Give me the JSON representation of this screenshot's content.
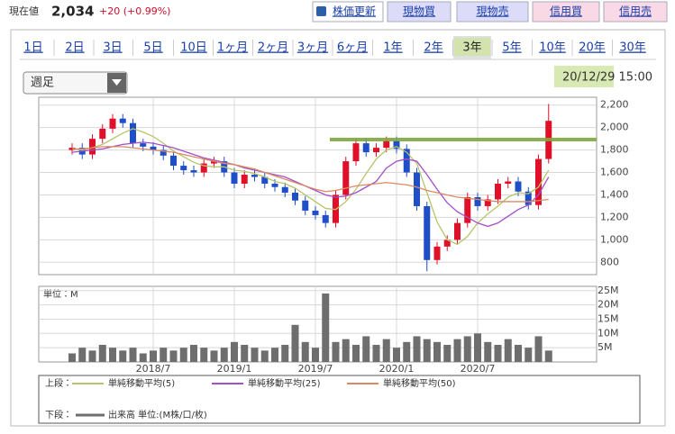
{
  "header": {
    "label": "現在値",
    "price": "2,034",
    "change": "+20 (+0.99%)"
  },
  "buttons": [
    "株価更新",
    "現物買",
    "現物売",
    "信用買",
    "信用売"
  ],
  "tabs": [
    "1日",
    "2日",
    "3日",
    "5日",
    "10日",
    "1ヶ月",
    "2ヶ月",
    "3ヶ月",
    "6ヶ月",
    "1年",
    "2年",
    "3年",
    "5年",
    "10年",
    "20年",
    "30年"
  ],
  "selected_tab": 11,
  "period_select": "週足",
  "timestamp": "20/12/29 15:00",
  "chart_data": {
    "type": "candlestick",
    "categories": [
      null,
      null,
      null,
      null,
      null,
      null,
      null,
      null,
      "2018/7",
      null,
      null,
      null,
      null,
      null,
      null,
      null,
      "2019/1",
      null,
      null,
      null,
      null,
      null,
      null,
      null,
      "2019/7",
      null,
      null,
      null,
      null,
      null,
      null,
      null,
      "2020/1",
      null,
      null,
      null,
      null,
      null,
      null,
      null,
      "2020/7",
      null,
      null,
      null,
      null,
      null,
      null,
      null
    ],
    "open": [
      1800,
      1820,
      1760,
      1900,
      1990,
      2080,
      2040,
      1860,
      1830,
      1800,
      1750,
      1660,
      1620,
      1600,
      1680,
      1700,
      1600,
      1500,
      1580,
      1560,
      1500,
      1470,
      1420,
      1350,
      1260,
      1220,
      1150,
      1400,
      1700,
      1860,
      1780,
      1820,
      1880,
      1810,
      1600,
      1300,
      820,
      940,
      1000,
      1150,
      1380,
      1300,
      1360,
      1500,
      1520,
      1430,
      1310,
      1720
    ],
    "high": [
      1860,
      1860,
      1940,
      2030,
      2120,
      2120,
      2080,
      1900,
      1870,
      1840,
      1790,
      1700,
      1660,
      1720,
      1740,
      1740,
      1640,
      1620,
      1620,
      1600,
      1540,
      1510,
      1460,
      1390,
      1300,
      1260,
      1440,
      1740,
      1900,
      1900,
      1860,
      1920,
      1920,
      1850,
      1640,
      1340,
      980,
      1040,
      1190,
      1420,
      1420,
      1400,
      1540,
      1560,
      1560,
      1470,
      1760,
      2210
    ],
    "low": [
      1760,
      1720,
      1720,
      1860,
      1950,
      2000,
      1820,
      1790,
      1760,
      1710,
      1620,
      1580,
      1560,
      1560,
      1640,
      1560,
      1460,
      1460,
      1520,
      1460,
      1430,
      1380,
      1310,
      1220,
      1180,
      1110,
      1110,
      1360,
      1660,
      1740,
      1740,
      1780,
      1770,
      1560,
      1260,
      720,
      780,
      900,
      960,
      1110,
      1260,
      1260,
      1320,
      1460,
      1390,
      1270,
      1270,
      1680
    ],
    "close": [
      1820,
      1760,
      1900,
      1990,
      2080,
      2040,
      1860,
      1830,
      1800,
      1750,
      1660,
      1620,
      1600,
      1680,
      1700,
      1600,
      1500,
      1580,
      1560,
      1500,
      1470,
      1420,
      1350,
      1260,
      1220,
      1150,
      1400,
      1700,
      1860,
      1780,
      1820,
      1880,
      1810,
      1600,
      1300,
      820,
      940,
      1000,
      1150,
      1380,
      1300,
      1360,
      1500,
      1520,
      1430,
      1310,
      1720,
      2060
    ],
    "up_color": "#e0102a",
    "down_color": "#1f4fc8",
    "upper_label": "上段：",
    "series": [
      {
        "name": "単純移動平均(5)",
        "color": "#b8c46a",
        "values": [
          1810,
          1800,
          1820,
          1850,
          1900,
          1950,
          1990,
          1960,
          1920,
          1860,
          1790,
          1740,
          1690,
          1660,
          1650,
          1650,
          1620,
          1610,
          1590,
          1560,
          1520,
          1500,
          1460,
          1400,
          1340,
          1280,
          1270,
          1340,
          1450,
          1590,
          1720,
          1800,
          1830,
          1780,
          1680,
          1420,
          1160,
          1000,
          960,
          1030,
          1150,
          1230,
          1300,
          1380,
          1420,
          1410,
          1470,
          1620
        ]
      },
      {
        "name": "単純移動平均(25)",
        "color": "#a24fc9",
        "values": [
          1780,
          1790,
          1800,
          1810,
          1830,
          1850,
          1860,
          1870,
          1860,
          1840,
          1820,
          1790,
          1760,
          1730,
          1710,
          1690,
          1670,
          1640,
          1620,
          1600,
          1580,
          1560,
          1520,
          1480,
          1440,
          1400,
          1380,
          1390,
          1420,
          1470,
          1520,
          1640,
          1700,
          1720,
          1700,
          1580,
          1450,
          1330,
          1250,
          1200,
          1150,
          1120,
          1150,
          1210,
          1270,
          1310,
          1400,
          1560
        ]
      },
      {
        "name": "単純移動平均(50)",
        "color": "#d98a62",
        "values": [
          1810,
          1810,
          1820,
          1830,
          1830,
          1830,
          1820,
          1810,
          1800,
          1790,
          1780,
          1760,
          1740,
          1720,
          1700,
          1680,
          1670,
          1650,
          1630,
          1600,
          1570,
          1540,
          1510,
          1480,
          1450,
          1430,
          1440,
          1460,
          1480,
          1490,
          1500,
          1510,
          1500,
          1490,
          1470,
          1440,
          1420,
          1400,
          1380,
          1370,
          1360,
          1350,
          1340,
          1340,
          1340,
          1340,
          1350,
          1360
        ]
      }
    ],
    "ylim": [
      690,
      2270
    ],
    "yticks": [
      {
        "value": 2200,
        "label": "2,200"
      },
      {
        "value": 2000,
        "label": "2,000"
      },
      {
        "value": 1800,
        "label": "1,800"
      },
      {
        "value": 1600,
        "label": "1,600"
      },
      {
        "value": 1400,
        "label": "1,400"
      },
      {
        "value": 1200,
        "label": "1,200"
      },
      {
        "value": 1000,
        "label": "1,000"
      },
      800
    ],
    "grid": true,
    "volume": {
      "unit_label": "単位：M",
      "lower_label": "下段：",
      "name": "出来高 単位:(M株/口/枚)",
      "color": "#6e6e6e",
      "values": [
        3,
        5,
        4,
        6,
        5,
        4,
        5,
        3,
        4,
        5,
        4,
        5,
        6,
        5,
        4,
        5,
        7,
        6,
        5,
        4,
        5,
        6,
        13,
        7,
        5,
        24,
        7,
        8,
        6,
        9,
        6,
        8,
        5,
        7,
        9,
        8,
        7,
        6,
        8,
        9,
        10,
        7,
        6,
        8,
        6,
        5,
        9,
        4
      ],
      "ylim": [
        0,
        26.5
      ],
      "yticks": [
        {
          "value": 25,
          "label": "25M"
        },
        {
          "value": 20,
          "label": "20M"
        },
        {
          "value": 15,
          "label": "15M"
        },
        {
          "value": 10,
          "label": "10M"
        },
        {
          "value": 5,
          "label": "5M"
        }
      ]
    }
  }
}
